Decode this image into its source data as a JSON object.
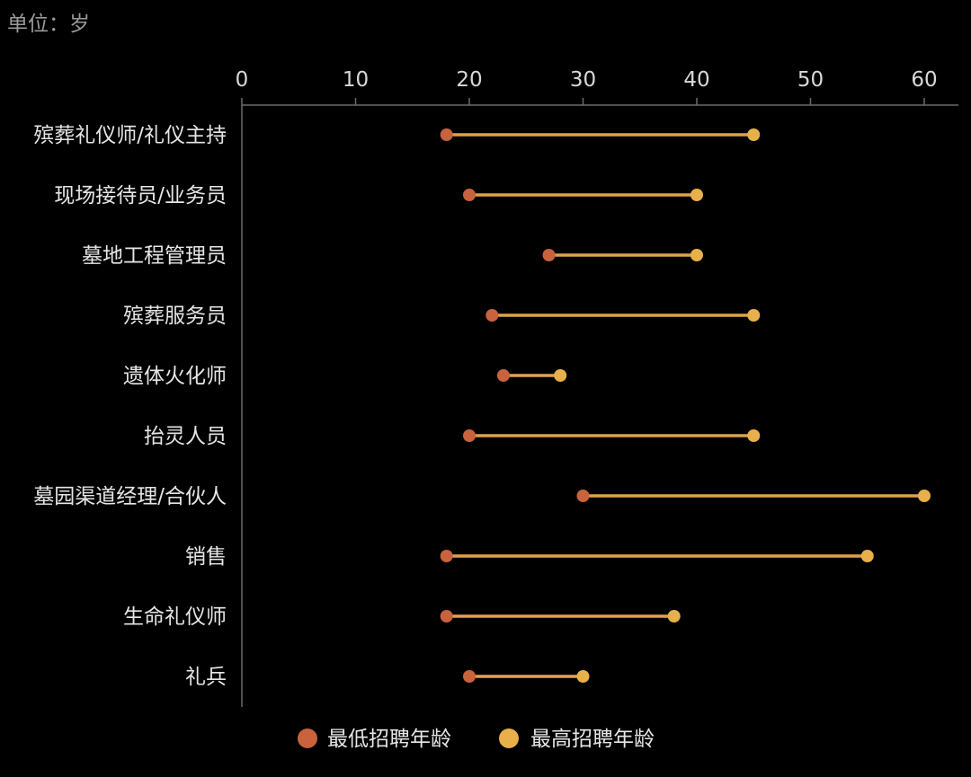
{
  "chart_data": {
    "type": "dumbbell",
    "unit_label": "单位：岁",
    "xlim": [
      0,
      60
    ],
    "x_ticks": [
      0,
      10,
      20,
      30,
      40,
      50,
      60
    ],
    "x_tick_labels": [
      "0",
      "10",
      "20",
      "30",
      "40",
      "50",
      "60"
    ],
    "axis_position": "top",
    "grid": false,
    "legend_position": "bottom-center",
    "categories": [
      "殡葬礼仪师/礼仪主持",
      "现场接待员/业务员",
      "墓地工程管理员",
      "殡葬服务员",
      "遗体火化师",
      "抬灵人员",
      "墓园渠道经理/合伙人",
      "销售",
      "生命礼仪师",
      "礼兵"
    ],
    "series": [
      {
        "name": "最低招聘年龄",
        "color": "#c8633e",
        "values": [
          18,
          20,
          27,
          22,
          23,
          20,
          30,
          18,
          18,
          20
        ]
      },
      {
        "name": "最高招聘年龄",
        "color": "#e8b04a",
        "values": [
          45,
          40,
          40,
          45,
          28,
          45,
          60,
          55,
          38,
          30
        ]
      }
    ],
    "line_color": "#e0a14d"
  }
}
